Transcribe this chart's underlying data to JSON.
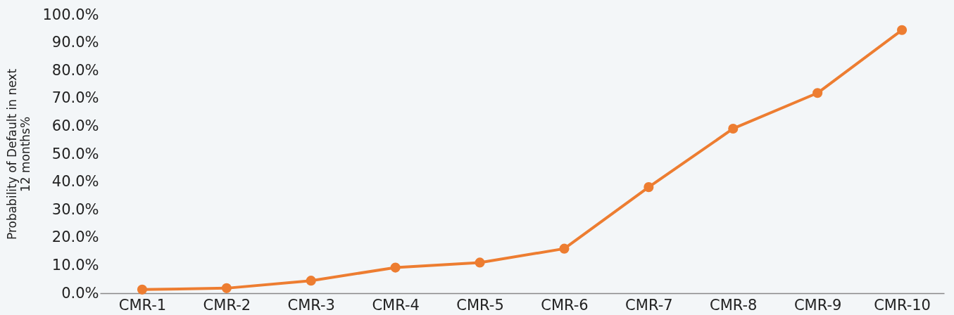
{
  "chart_data": {
    "type": "line",
    "ylabel": "Probability of Default in next 12 months%",
    "categories": [
      "CMR-1",
      "CMR-2",
      "CMR-3",
      "CMR-4",
      "CMR-5",
      "CMR-6",
      "CMR-7",
      "CMR-8",
      "CMR-9",
      "CMR-10"
    ],
    "series": [
      {
        "color": "#ed7d31",
        "values": [
          1.3,
          1.8,
          4.5,
          9.2,
          11.0,
          16.0,
          38.1,
          59.1,
          71.9,
          94.5
        ]
      }
    ],
    "ylim": [
      0,
      100
    ],
    "yticks": [
      {
        "value": 0,
        "label": "0.0%"
      },
      {
        "value": 10,
        "label": "10.0%"
      },
      {
        "value": 20,
        "label": "20.0%"
      },
      {
        "value": 30,
        "label": "30.0%"
      },
      {
        "value": 40,
        "label": "40.0%"
      },
      {
        "value": 50,
        "label": "50.0%"
      },
      {
        "value": 60,
        "label": "60.0%"
      },
      {
        "value": 70,
        "label": "70.0%"
      },
      {
        "value": 80,
        "label": "80.0%"
      },
      {
        "value": 90,
        "label": "90.0%"
      },
      {
        "value": 100,
        "label": "100.0%"
      }
    ],
    "grid": false,
    "marker": "circle",
    "line_style": "solid"
  }
}
